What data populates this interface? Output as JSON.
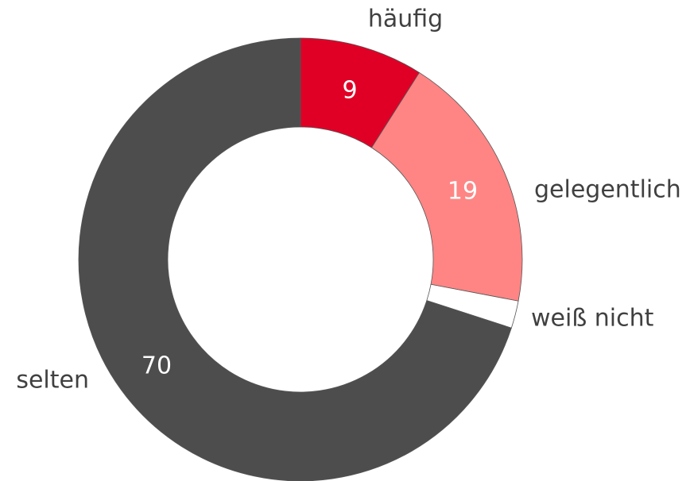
{
  "chart_data": {
    "type": "donut",
    "categories": [
      "häufig",
      "gelegentlich",
      "weiß nicht",
      "selten"
    ],
    "values": [
      9,
      19,
      2,
      70
    ],
    "value_labels": [
      "9",
      "19",
      null,
      "70"
    ],
    "colors": [
      "#e00026",
      "#ff8585",
      "#ffffff",
      "#4d4d4d"
    ]
  }
}
